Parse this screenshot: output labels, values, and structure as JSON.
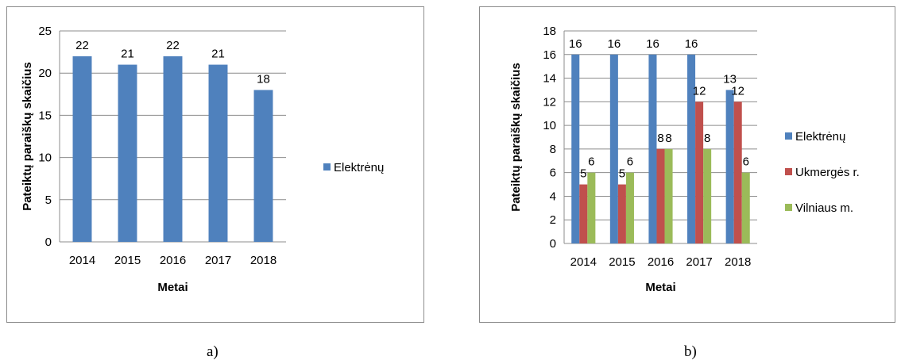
{
  "captions": [
    "a)",
    "b)"
  ],
  "chart_data": [
    {
      "type": "bar",
      "categories": [
        "2014",
        "2015",
        "2016",
        "2017",
        "2018"
      ],
      "series": [
        {
          "name": "Elektrėnų",
          "values": [
            22,
            21,
            22,
            21,
            18
          ],
          "color": "#4f81bd"
        }
      ],
      "xlabel": "Metai",
      "ylabel": "Pateiktų paraiškų skaičius",
      "ylim": [
        0,
        25
      ],
      "yticks": [
        0,
        5,
        10,
        15,
        20,
        25
      ],
      "grid": true,
      "legend": "right"
    },
    {
      "type": "bar",
      "categories": [
        "2014",
        "2015",
        "2016",
        "2017",
        "2018"
      ],
      "series": [
        {
          "name": "Elektrėnų",
          "values": [
            16,
            16,
            16,
            16,
            13
          ],
          "color": "#4f81bd"
        },
        {
          "name": "Ukmergės r.",
          "values": [
            5,
            5,
            8,
            12,
            12
          ],
          "color": "#c0504d"
        },
        {
          "name": "Vilniaus m.",
          "values": [
            6,
            6,
            8,
            8,
            6
          ],
          "color": "#9bbb59"
        }
      ],
      "xlabel": "Metai",
      "ylabel": "Pateiktų paraiškų skaičius",
      "ylim": [
        0,
        18
      ],
      "yticks": [
        0,
        2,
        4,
        6,
        8,
        10,
        12,
        14,
        16,
        18
      ],
      "grid": true,
      "legend": "right"
    }
  ]
}
